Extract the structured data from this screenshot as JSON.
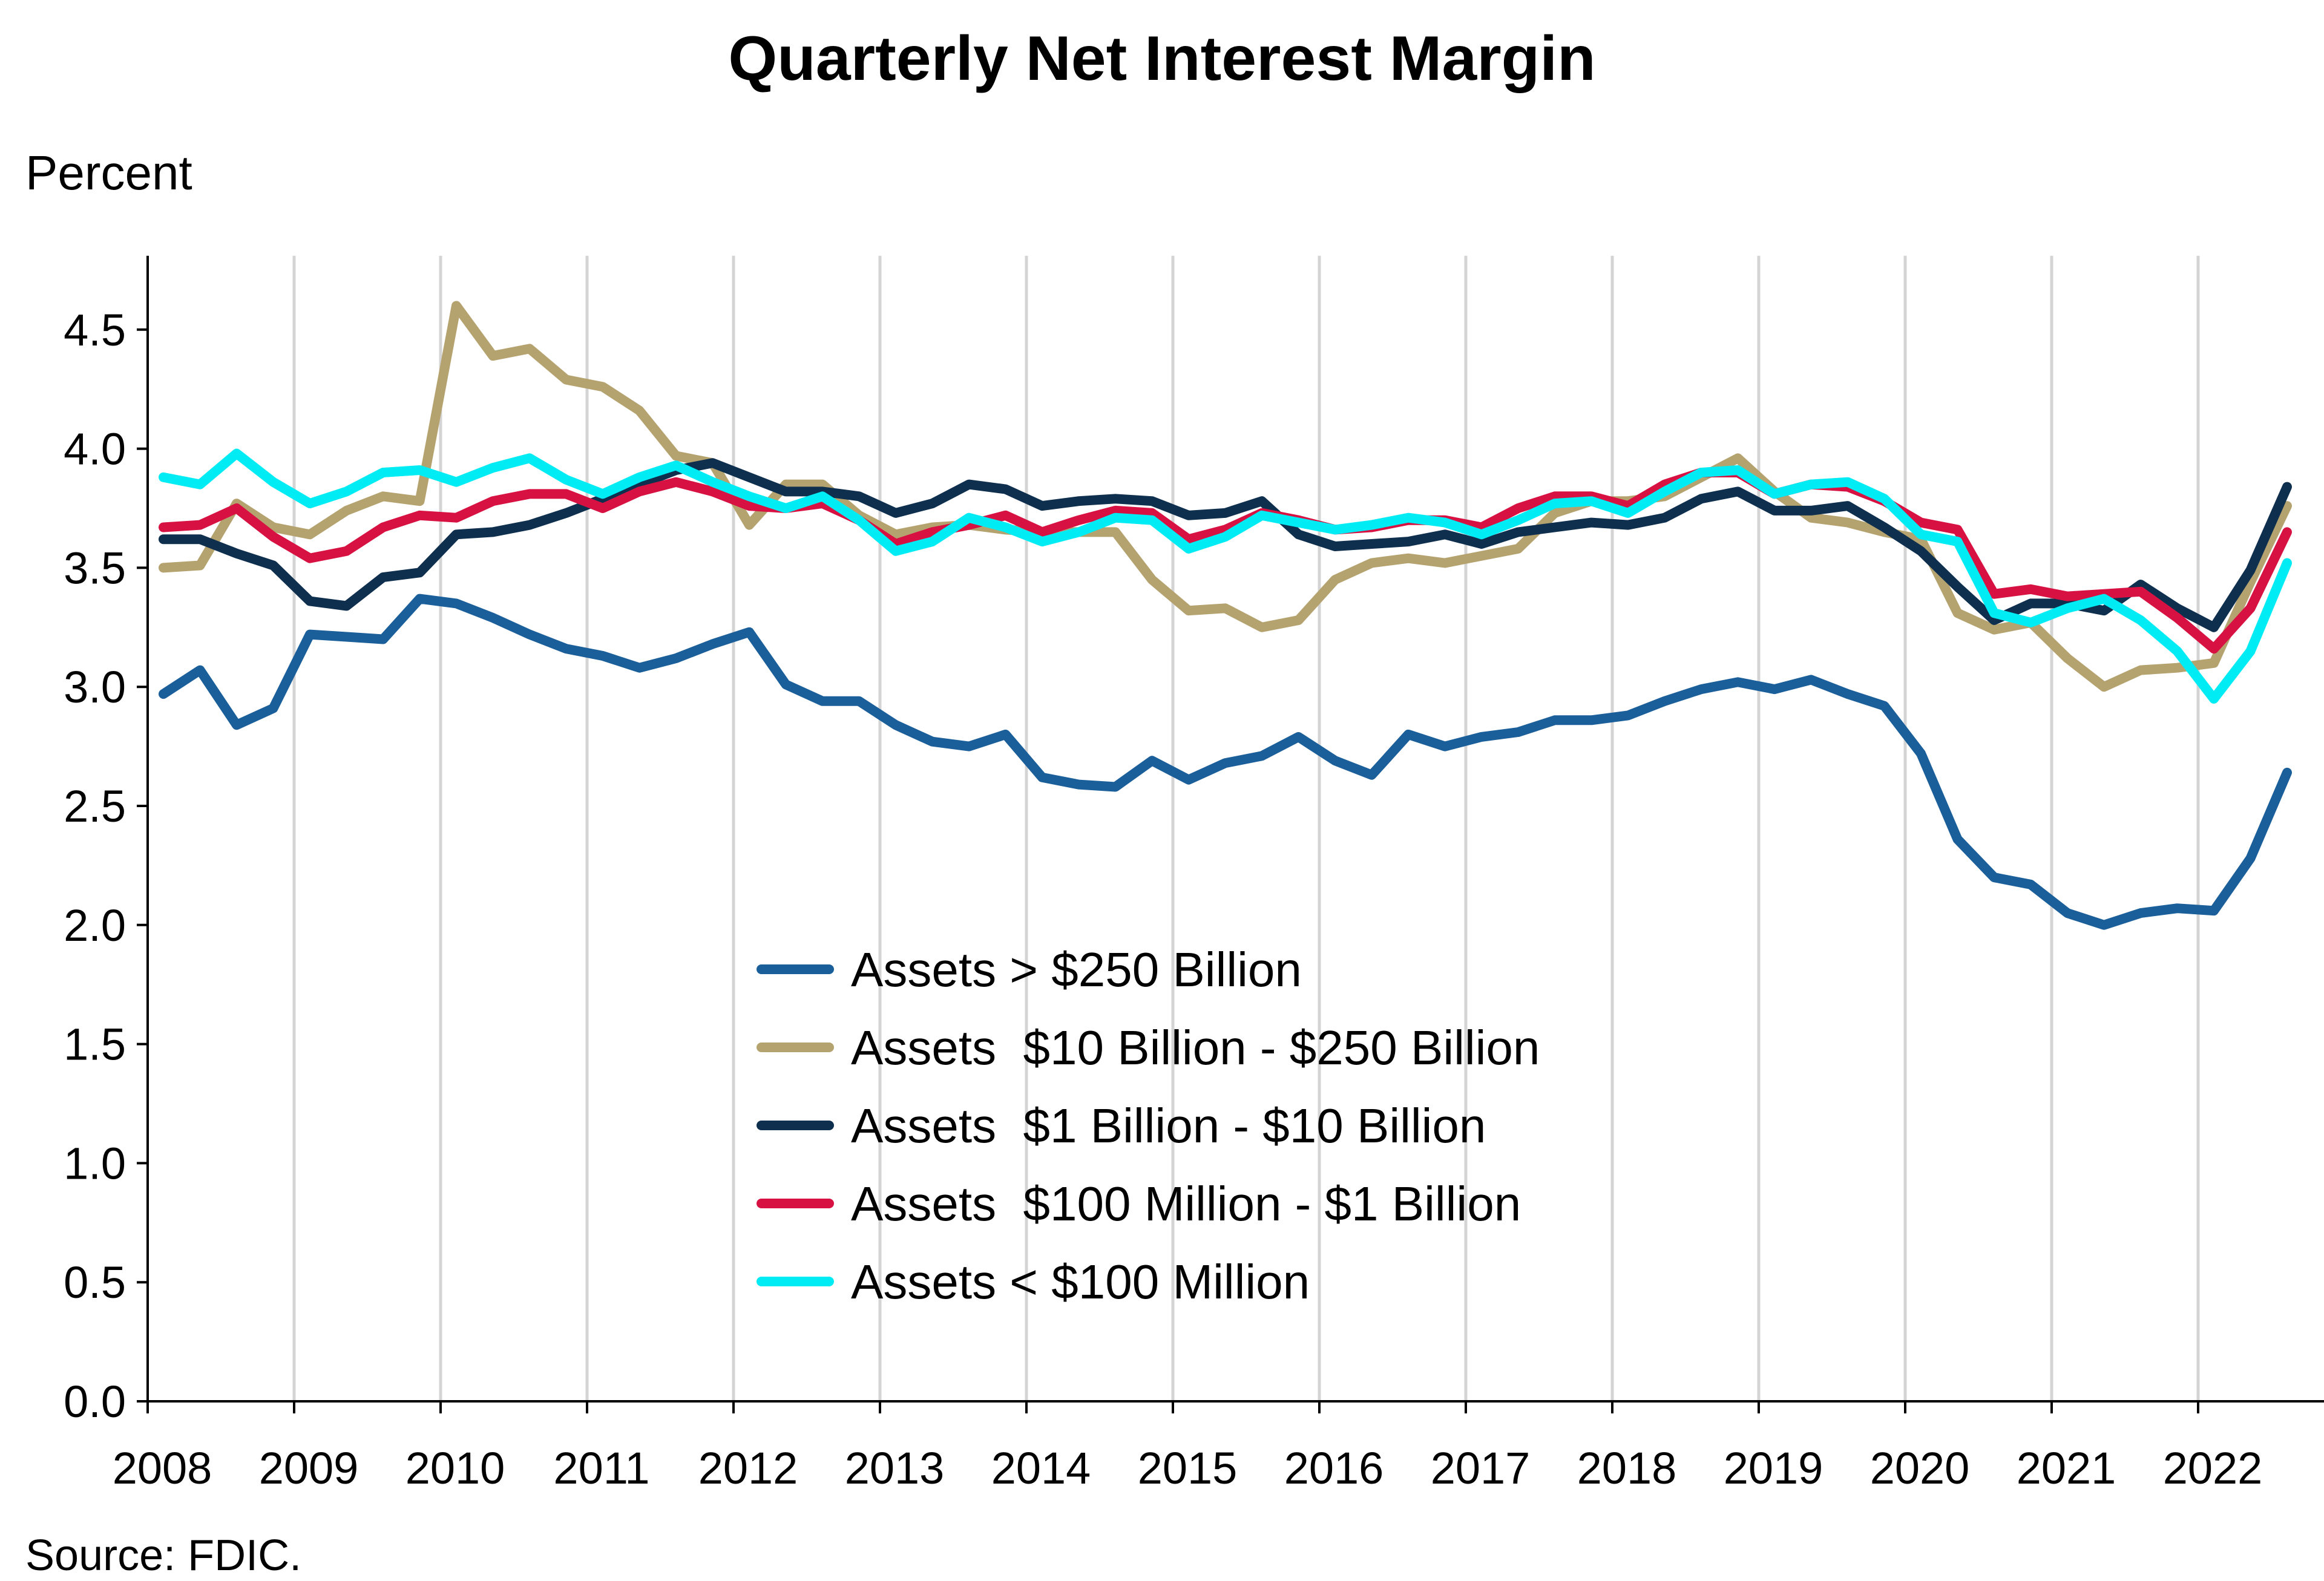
{
  "chart_data": {
    "type": "line",
    "title": "Quarterly Net Interest Margin",
    "ylabel": "Percent",
    "xlabel": "",
    "source": "Source: FDIC.",
    "ylim": [
      0,
      4.8
    ],
    "y_ticks": [
      "0.0",
      "0.5",
      "1.0",
      "1.5",
      "2.0",
      "2.5",
      "3.0",
      "3.5",
      "4.0",
      "4.5"
    ],
    "x_tick_labels": [
      "2008",
      "2009",
      "2010",
      "2011",
      "2012",
      "2013",
      "2014",
      "2015",
      "2016",
      "2017",
      "2018",
      "2019",
      "2020",
      "2021",
      "2022"
    ],
    "grid": "vertical lines at year boundaries",
    "legend_position": "center",
    "x_start_year": 2008,
    "x": [
      "2008Q1",
      "2008Q2",
      "2008Q3",
      "2008Q4",
      "2009Q1",
      "2009Q2",
      "2009Q3",
      "2009Q4",
      "2010Q1",
      "2010Q2",
      "2010Q3",
      "2010Q4",
      "2011Q1",
      "2011Q2",
      "2011Q3",
      "2011Q4",
      "2012Q1",
      "2012Q2",
      "2012Q3",
      "2012Q4",
      "2013Q1",
      "2013Q2",
      "2013Q3",
      "2013Q4",
      "2014Q1",
      "2014Q2",
      "2014Q3",
      "2014Q4",
      "2015Q1",
      "2015Q2",
      "2015Q3",
      "2015Q4",
      "2016Q1",
      "2016Q2",
      "2016Q3",
      "2016Q4",
      "2017Q1",
      "2017Q2",
      "2017Q3",
      "2017Q4",
      "2018Q1",
      "2018Q2",
      "2018Q3",
      "2018Q4",
      "2019Q1",
      "2019Q2",
      "2019Q3",
      "2019Q4",
      "2020Q1",
      "2020Q2",
      "2020Q3",
      "2020Q4",
      "2021Q1",
      "2021Q2",
      "2021Q3",
      "2021Q4",
      "2022Q1",
      "2022Q2",
      "2022Q3"
    ],
    "series": [
      {
        "name": "Assets > $250 Billion",
        "color": "#1a5e9a",
        "values": [
          2.97,
          3.07,
          2.84,
          2.91,
          3.22,
          3.21,
          3.2,
          3.37,
          3.35,
          3.29,
          3.22,
          3.16,
          3.13,
          3.08,
          3.12,
          3.18,
          3.23,
          3.01,
          2.94,
          2.94,
          2.84,
          2.77,
          2.75,
          2.8,
          2.62,
          2.59,
          2.58,
          2.69,
          2.61,
          2.68,
          2.71,
          2.79,
          2.69,
          2.63,
          2.8,
          2.75,
          2.79,
          2.81,
          2.86,
          2.86,
          2.88,
          2.94,
          2.99,
          3.02,
          2.99,
          3.03,
          2.97,
          2.92,
          2.72,
          2.36,
          2.2,
          2.17,
          2.05,
          2.0,
          2.05,
          2.07,
          2.06,
          2.28,
          2.64
        ]
      },
      {
        "name": "Assets  $10 Billion - $250 Billion",
        "color": "#b5a36f",
        "values": [
          3.5,
          3.51,
          3.77,
          3.67,
          3.64,
          3.74,
          3.8,
          3.78,
          4.6,
          4.39,
          4.42,
          4.29,
          4.26,
          4.16,
          3.97,
          3.94,
          3.68,
          3.85,
          3.85,
          3.72,
          3.64,
          3.67,
          3.68,
          3.66,
          3.65,
          3.65,
          3.65,
          3.45,
          3.32,
          3.33,
          3.25,
          3.28,
          3.45,
          3.52,
          3.54,
          3.52,
          3.55,
          3.58,
          3.73,
          3.78,
          3.78,
          3.8,
          3.88,
          3.96,
          3.82,
          3.71,
          3.69,
          3.65,
          3.62,
          3.31,
          3.24,
          3.27,
          3.12,
          3.0,
          3.07,
          3.08,
          3.1,
          3.44,
          3.76
        ]
      },
      {
        "name": "Assets  $1 Billion - $10 Billion",
        "color": "#0f2f4f",
        "values": [
          3.62,
          3.62,
          3.56,
          3.51,
          3.36,
          3.34,
          3.46,
          3.48,
          3.64,
          3.65,
          3.68,
          3.73,
          3.79,
          3.85,
          3.91,
          3.94,
          3.88,
          3.82,
          3.82,
          3.8,
          3.73,
          3.77,
          3.85,
          3.83,
          3.76,
          3.78,
          3.79,
          3.78,
          3.72,
          3.73,
          3.78,
          3.64,
          3.59,
          3.6,
          3.61,
          3.64,
          3.6,
          3.65,
          3.67,
          3.69,
          3.68,
          3.71,
          3.79,
          3.82,
          3.74,
          3.74,
          3.76,
          3.67,
          3.57,
          3.42,
          3.28,
          3.35,
          3.35,
          3.32,
          3.43,
          3.33,
          3.25,
          3.49,
          3.84
        ]
      },
      {
        "name": "Assets  $100 Million - $1 Billion",
        "color": "#d71242",
        "values": [
          3.67,
          3.68,
          3.75,
          3.63,
          3.54,
          3.57,
          3.67,
          3.72,
          3.71,
          3.78,
          3.81,
          3.81,
          3.75,
          3.82,
          3.86,
          3.82,
          3.76,
          3.75,
          3.77,
          3.7,
          3.6,
          3.65,
          3.68,
          3.72,
          3.65,
          3.7,
          3.74,
          3.73,
          3.62,
          3.66,
          3.73,
          3.7,
          3.66,
          3.67,
          3.7,
          3.7,
          3.67,
          3.75,
          3.8,
          3.8,
          3.76,
          3.85,
          3.9,
          3.9,
          3.81,
          3.85,
          3.84,
          3.78,
          3.69,
          3.66,
          3.39,
          3.41,
          3.38,
          3.39,
          3.4,
          3.29,
          3.16,
          3.33,
          3.65
        ]
      },
      {
        "name": "Assets < $100 Million",
        "color": "#00ecf4",
        "values": [
          3.88,
          3.85,
          3.98,
          3.86,
          3.77,
          3.82,
          3.9,
          3.91,
          3.86,
          3.92,
          3.96,
          3.87,
          3.81,
          3.88,
          3.93,
          3.86,
          3.8,
          3.75,
          3.8,
          3.7,
          3.57,
          3.61,
          3.71,
          3.67,
          3.61,
          3.65,
          3.71,
          3.7,
          3.58,
          3.63,
          3.72,
          3.69,
          3.66,
          3.68,
          3.71,
          3.69,
          3.64,
          3.7,
          3.77,
          3.78,
          3.73,
          3.82,
          3.9,
          3.91,
          3.81,
          3.85,
          3.86,
          3.79,
          3.64,
          3.61,
          3.31,
          3.27,
          3.33,
          3.37,
          3.28,
          3.15,
          2.95,
          3.15,
          3.52
        ]
      }
    ]
  }
}
